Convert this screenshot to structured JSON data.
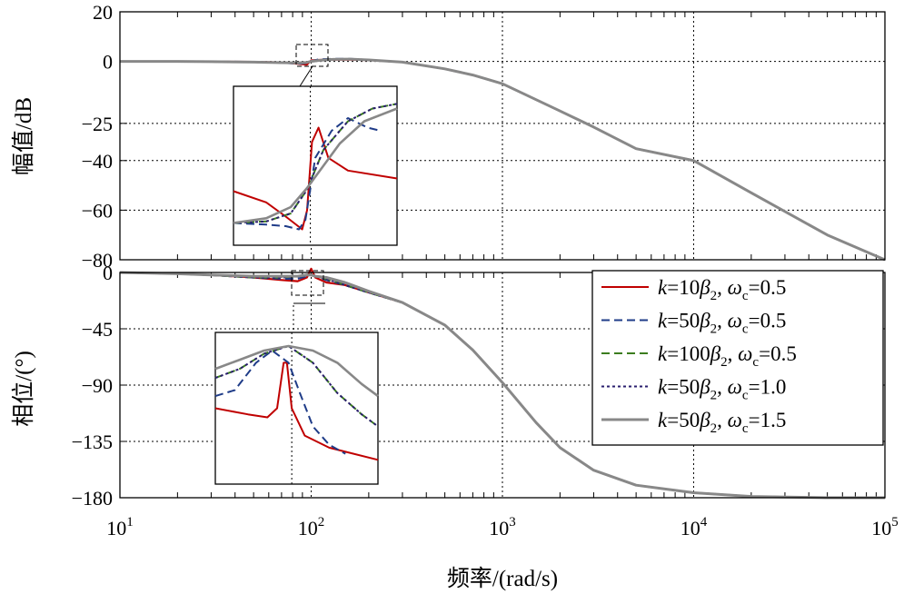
{
  "chart_data": [
    {
      "type": "line",
      "panel": "magnitude",
      "title": "",
      "xlabel": "频率/(rad/s)",
      "ylabel": "幅值/dB",
      "xscale": "log",
      "xlim": [
        10,
        100000
      ],
      "ylim": [
        -80,
        20
      ],
      "yticks": [
        20,
        0,
        -25,
        -40,
        -60,
        -80
      ],
      "ytick_labels": [
        "20",
        "0",
        "−25",
        "−40",
        "−60",
        "−80"
      ],
      "grid": true,
      "x": [
        10,
        20,
        30,
        50,
        70,
        85,
        95,
        100,
        110,
        130,
        160,
        200,
        300,
        500,
        700,
        1000,
        2000,
        3000,
        5000,
        10000,
        20000,
        50000,
        100000
      ],
      "series": [
        {
          "name": "k=10β2, ωc=0.5",
          "color": "#c00000",
          "dash": "solid",
          "values": [
            0,
            0,
            -0.1,
            -0.2,
            -0.4,
            -0.9,
            -1.3,
            0.4,
            0.6,
            0.7,
            0.7,
            0.5,
            -0.3,
            -3,
            -5.5,
            -9,
            -20,
            -26.5,
            -35.2,
            -40,
            -53,
            -70,
            -80
          ]
        },
        {
          "name": "k=50β2, ωc=0.5",
          "color": "#1f3c88",
          "dash": "dashed",
          "values": [
            0,
            0,
            -0.1,
            -0.2,
            -0.5,
            -0.9,
            -0.7,
            0.1,
            0.8,
            1.0,
            1.0,
            0.6,
            -0.3,
            -3,
            -5.5,
            -9,
            -20,
            -26.5,
            -35.2,
            -40,
            -53,
            -70,
            -80
          ]
        },
        {
          "name": "k=100β2, ωc=0.5",
          "color": "#3b7d1e",
          "dash": "dashed",
          "values": [
            0,
            0,
            -0.1,
            -0.3,
            -0.5,
            -0.7,
            -0.5,
            0,
            0.5,
            0.9,
            0.9,
            0.6,
            -0.3,
            -3,
            -5.5,
            -9,
            -20,
            -26.5,
            -35.2,
            -40,
            -53,
            -70,
            -80
          ]
        },
        {
          "name": "k=50β2, ωc=1.0",
          "color": "#2a1f6e",
          "dash": "dotted",
          "values": [
            0,
            0,
            -0.1,
            -0.3,
            -0.5,
            -0.7,
            -0.5,
            0,
            0.5,
            0.9,
            0.9,
            0.6,
            -0.3,
            -3,
            -5.5,
            -9,
            -20,
            -26.5,
            -35.2,
            -40,
            -53,
            -70,
            -80
          ]
        },
        {
          "name": "k=50β2, ωc=1.5",
          "color": "#888888",
          "dash": "solid",
          "values": [
            0,
            0,
            -0.1,
            -0.3,
            -0.5,
            -0.6,
            -0.4,
            0,
            0.4,
            0.8,
            0.9,
            0.6,
            -0.3,
            -3,
            -5.5,
            -9,
            -20,
            -26.5,
            -35.2,
            -40,
            -53,
            -70,
            -80
          ]
        }
      ],
      "legend": "none"
    },
    {
      "type": "line",
      "panel": "phase",
      "title": "",
      "xlabel": "频率/(rad/s)",
      "ylabel": "相位/(°)",
      "xscale": "log",
      "xlim": [
        10,
        100000
      ],
      "ylim": [
        -180,
        0
      ],
      "yticks": [
        0,
        -45,
        -90,
        -135,
        -180
      ],
      "ytick_labels": [
        "0",
        "−45",
        "−90",
        "−135",
        "−180"
      ],
      "xticks": [
        10,
        100,
        1000,
        10000,
        100000
      ],
      "xtick_labels": [
        {
          "base": "10",
          "exp": "1"
        },
        {
          "base": "10",
          "exp": "2"
        },
        {
          "base": "10",
          "exp": "3"
        },
        {
          "base": "10",
          "exp": "4"
        },
        {
          "base": "10",
          "exp": "5"
        }
      ],
      "grid": true,
      "x": [
        10,
        20,
        30,
        50,
        70,
        85,
        95,
        100,
        105,
        120,
        150,
        200,
        300,
        500,
        700,
        1000,
        1500,
        2000,
        3000,
        5000,
        10000,
        20000,
        50000,
        100000
      ],
      "series": [
        {
          "name": "k=10β2, ωc=0.5",
          "color": "#c00000",
          "dash": "solid",
          "values": [
            0,
            -1,
            -2,
            -4,
            -6,
            -7,
            -4,
            3,
            -4,
            -8,
            -10,
            -16,
            -24,
            -42,
            -62,
            -88,
            -120,
            -140,
            -158,
            -170,
            -176,
            -179,
            -180,
            -180
          ]
        },
        {
          "name": "k=50β2, ωc=0.5",
          "color": "#1f3c88",
          "dash": "dashed",
          "values": [
            0,
            -1,
            -2,
            -4,
            -5,
            -5,
            -3,
            -2,
            -3,
            -6,
            -10,
            -16,
            -24,
            -42,
            -62,
            -88,
            -120,
            -140,
            -158,
            -170,
            -176,
            -179,
            -180,
            -180
          ]
        },
        {
          "name": "k=100β2, ωc=0.5",
          "color": "#3b7d1e",
          "dash": "dashed",
          "values": [
            0,
            -1,
            -2,
            -4,
            -4,
            -3,
            -2,
            -2,
            -3,
            -5,
            -10,
            -16,
            -24,
            -42,
            -62,
            -88,
            -120,
            -140,
            -158,
            -170,
            -176,
            -179,
            -180,
            -180
          ]
        },
        {
          "name": "k=50β2, ωc=1.0",
          "color": "#2a1f6e",
          "dash": "dotted",
          "values": [
            0,
            -1,
            -2,
            -4,
            -4,
            -3,
            -2,
            -2,
            -3,
            -5,
            -10,
            -16,
            -24,
            -42,
            -62,
            -88,
            -120,
            -140,
            -158,
            -170,
            -176,
            -179,
            -180,
            -180
          ]
        },
        {
          "name": "k=50β2, ωc=1.5",
          "color": "#888888",
          "dash": "solid",
          "values": [
            0,
            -1,
            -2,
            -3,
            -3,
            -3,
            -2,
            -2,
            -3,
            -4,
            -8,
            -15,
            -24,
            -42,
            -62,
            -88,
            -120,
            -140,
            -158,
            -170,
            -176,
            -179,
            -180,
            -180
          ]
        }
      ],
      "legend": "top-right"
    }
  ],
  "legend": {
    "entries": [
      {
        "k": "k",
        "k_val": "=10",
        "beta": "β",
        "beta_sub": "2",
        "omega": "ω",
        "omega_sub": "c",
        "omega_val": "=0.5",
        "color": "#c00000",
        "dash": "solid"
      },
      {
        "k": "k",
        "k_val": "=50",
        "beta": "β",
        "beta_sub": "2",
        "omega": "ω",
        "omega_sub": "c",
        "omega_val": "=0.5",
        "color": "#1f3c88",
        "dash": "dashed"
      },
      {
        "k": "k",
        "k_val": "=100",
        "beta": "β",
        "beta_sub": "2",
        "omega": "ω",
        "omega_sub": "c",
        "omega_val": "=0.5",
        "color": "#3b7d1e",
        "dash": "dashed"
      },
      {
        "k": "k",
        "k_val": "=50",
        "beta": "β",
        "beta_sub": "2",
        "omega": "ω",
        "omega_sub": "c",
        "omega_val": "=1.0",
        "color": "#2a1f6e",
        "dash": "dotted"
      },
      {
        "k": "k",
        "k_val": "=50",
        "beta": "β",
        "beta_sub": "2",
        "omega": "ω",
        "omega_sub": "c",
        "omega_val": "=1.5",
        "color": "#888888",
        "dash": "solid"
      }
    ]
  }
}
